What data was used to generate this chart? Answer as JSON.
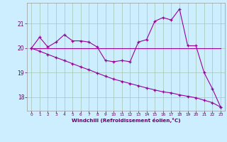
{
  "xlabel": "Windchill (Refroidissement éolien,°C)",
  "bg_color": "#cceeff",
  "grid_color": "#aaccbb",
  "line_color": "#990099",
  "x": [
    0,
    1,
    2,
    3,
    4,
    5,
    6,
    7,
    8,
    9,
    10,
    11,
    12,
    13,
    14,
    15,
    16,
    17,
    18,
    19,
    20,
    21,
    22,
    23
  ],
  "y_jagged": [
    20.0,
    20.45,
    20.05,
    20.25,
    20.55,
    20.3,
    20.3,
    20.25,
    20.05,
    19.5,
    19.45,
    19.5,
    19.45,
    20.25,
    20.35,
    21.1,
    21.25,
    21.15,
    21.6,
    20.1,
    20.1,
    19.0,
    18.35,
    17.6
  ],
  "y_flat": [
    20.0,
    20.0,
    20.0,
    20.0,
    20.0,
    20.0,
    20.0,
    20.0,
    20.0,
    20.0,
    20.0,
    20.0,
    20.0,
    20.0,
    20.0,
    20.0,
    20.0,
    20.0,
    20.0,
    20.0,
    20.0,
    20.0,
    20.0,
    20.0
  ],
  "y_decline": [
    20.0,
    19.88,
    19.75,
    19.62,
    19.5,
    19.37,
    19.24,
    19.12,
    18.99,
    18.86,
    18.74,
    18.65,
    18.56,
    18.47,
    18.38,
    18.3,
    18.22,
    18.18,
    18.1,
    18.04,
    17.98,
    17.88,
    17.78,
    17.6
  ],
  "ylim": [
    17.45,
    21.85
  ],
  "yticks": [
    18,
    19,
    20,
    21
  ],
  "xticks": [
    0,
    1,
    2,
    3,
    4,
    5,
    6,
    7,
    8,
    9,
    10,
    11,
    12,
    13,
    14,
    15,
    16,
    17,
    18,
    19,
    20,
    21,
    22,
    23
  ],
  "figw": 3.2,
  "figh": 2.0,
  "dpi": 100
}
